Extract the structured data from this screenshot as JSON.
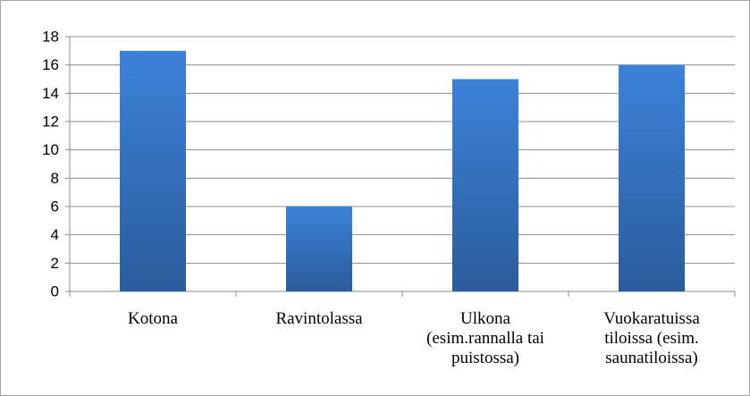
{
  "chart_data": {
    "type": "bar",
    "categories": [
      "Kotona",
      "Ravintolassa",
      "Ulkona (esim.rannalla tai puistossa)",
      "Vuokaratuissa tiloissa (esim. saunatiloissa)"
    ],
    "values": [
      17,
      6,
      15,
      16
    ],
    "color": "#3a7dd2",
    "ylim": [
      0,
      18
    ],
    "yticks": [
      0,
      2,
      4,
      6,
      8,
      10,
      12,
      14,
      16,
      18
    ],
    "grid": true
  }
}
